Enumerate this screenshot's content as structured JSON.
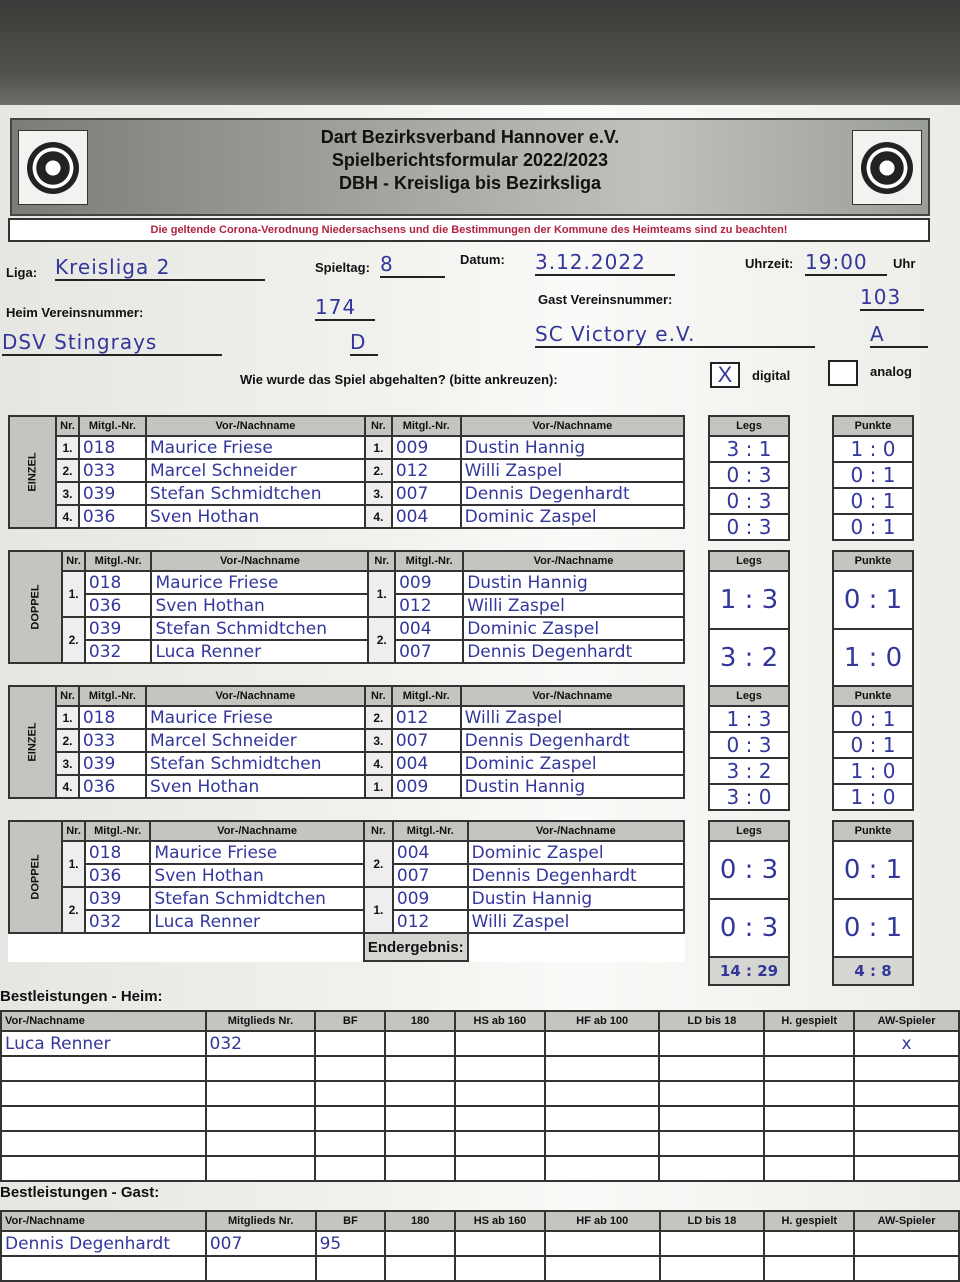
{
  "header": {
    "line1": "Dart Bezirksverband Hannover e.V.",
    "line2": "Spielberichtsformular 2022/2023",
    "line3": "DBH - Kreisliga bis Bezirksliga",
    "notice": "Die geltende Corona-Verodnung Niedersachsens und die Bestimmungen der Kommune des Heimteams sind zu beachten!"
  },
  "info": {
    "liga_label": "Liga:",
    "liga": "Kreisliga 2",
    "spieltag_label": "Spieltag:",
    "spieltag": "8",
    "datum_label": "Datum:",
    "datum": "3.12.2022",
    "uhrzeit_label": "Uhrzeit:",
    "uhrzeit": "19:00",
    "uhr": "Uhr",
    "heim_label": "Heim Vereinsnummer:",
    "heim_nr": "174",
    "heim_team": "DSV Stingrays",
    "heim_class": "D",
    "gast_label": "Gast Vereinsnummer:",
    "gast_nr": "103",
    "gast_team": "SC Victory e.V.",
    "gast_class": "A",
    "question": "Wie wurde das Spiel abgehalten? (bitte ankreuzen):",
    "digital": "digital",
    "digital_mark": "X",
    "analog": "analog",
    "digital_checked": true
  },
  "headers": {
    "nr": "Nr.",
    "mitgl": "Mitgl.-Nr.",
    "name": "Vor-/Nachname",
    "legs": "Legs",
    "punkte": "Punkte",
    "endergebnis": "Endergebnis:"
  },
  "sections": [
    {
      "label": "EINZEL",
      "type": "single",
      "rows": [
        {
          "nr": "1.",
          "hid": "018",
          "hname": "Maurice Friese",
          "anr": "1.",
          "aid": "009",
          "aname": "Dustin Hannig",
          "legs": "3 : 1",
          "punkte": "1 : 0"
        },
        {
          "nr": "2.",
          "hid": "033",
          "hname": "Marcel Schneider",
          "anr": "2.",
          "aid": "012",
          "aname": "Willi Zaspel",
          "legs": "0 : 3",
          "punkte": "0 : 1"
        },
        {
          "nr": "3.",
          "hid": "039",
          "hname": "Stefan Schmidtchen",
          "anr": "3.",
          "aid": "007",
          "aname": "Dennis Degenhardt",
          "legs": "0 : 3",
          "punkte": "0 : 1"
        },
        {
          "nr": "4.",
          "hid": "036",
          "hname": "Sven Hothan",
          "anr": "4.",
          "aid": "004",
          "aname": "Dominic Zaspel",
          "legs": "0 : 3",
          "punkte": "0 : 1"
        }
      ]
    },
    {
      "label": "DOPPEL",
      "type": "double",
      "rows": [
        {
          "nr": "1.",
          "home": [
            [
              "018",
              "Maurice Friese"
            ],
            [
              "036",
              "Sven Hothan"
            ]
          ],
          "anr": "1.",
          "away": [
            [
              "009",
              "Dustin Hannig"
            ],
            [
              "012",
              "Willi Zaspel"
            ]
          ],
          "legs": "1 : 3",
          "punkte": "0 : 1"
        },
        {
          "nr": "2.",
          "home": [
            [
              "039",
              "Stefan Schmidtchen"
            ],
            [
              "032",
              "Luca Renner"
            ]
          ],
          "anr": "2.",
          "away": [
            [
              "004",
              "Dominic Zaspel"
            ],
            [
              "007",
              "Dennis Degenhardt"
            ]
          ],
          "legs": "3 : 2",
          "punkte": "1 : 0"
        }
      ]
    },
    {
      "label": "EINZEL",
      "type": "single",
      "rows": [
        {
          "nr": "1.",
          "hid": "018",
          "hname": "Maurice Friese",
          "anr": "2.",
          "aid": "012",
          "aname": "Willi Zaspel",
          "legs": "1 : 3",
          "punkte": "0 : 1"
        },
        {
          "nr": "2.",
          "hid": "033",
          "hname": "Marcel Schneider",
          "anr": "3.",
          "aid": "007",
          "aname": "Dennis Degenhardt",
          "legs": "0 : 3",
          "punkte": "0 : 1"
        },
        {
          "nr": "3.",
          "hid": "039",
          "hname": "Stefan Schmidtchen",
          "anr": "4.",
          "aid": "004",
          "aname": "Dominic Zaspel",
          "legs": "3 : 2",
          "punkte": "1 : 0"
        },
        {
          "nr": "4.",
          "hid": "036",
          "hname": "Sven Hothan",
          "anr": "1.",
          "aid": "009",
          "aname": "Dustin Hannig",
          "legs": "3 : 0",
          "punkte": "1 : 0"
        }
      ]
    },
    {
      "label": "DOPPEL",
      "type": "double",
      "rows": [
        {
          "nr": "1.",
          "home": [
            [
              "018",
              "Maurice Friese"
            ],
            [
              "036",
              "Sven Hothan"
            ]
          ],
          "anr": "2.",
          "away": [
            [
              "004",
              "Dominic Zaspel"
            ],
            [
              "007",
              "Dennis Degenhardt"
            ]
          ],
          "legs": "0 : 3",
          "punkte": "0 : 1"
        },
        {
          "nr": "2.",
          "home": [
            [
              "039",
              "Stefan Schmidtchen"
            ],
            [
              "032",
              "Luca Renner"
            ]
          ],
          "anr": "1.",
          "away": [
            [
              "009",
              "Dustin Hannig"
            ],
            [
              "012",
              "Willi Zaspel"
            ]
          ],
          "legs": "0 : 3",
          "punkte": "0 : 1"
        }
      ]
    }
  ],
  "endergebnis": {
    "legs": "14 : 29",
    "punkte": "4 : 8"
  },
  "best": {
    "columns": [
      "Vor-/Nachname",
      "Mitglieds Nr.",
      "BF",
      "180",
      "HS ab 160",
      "HF ab 100",
      "LD bis 18",
      "H. gespielt",
      "AW-Spieler"
    ],
    "heim_title": "Bestleistungen - Heim:",
    "heim_rows": [
      [
        "Luca Renner",
        "032",
        "",
        "",
        "",
        "",
        "",
        "",
        "x"
      ],
      [
        "",
        "",
        "",
        "",
        "",
        "",
        "",
        "",
        ""
      ],
      [
        "",
        "",
        "",
        "",
        "",
        "",
        "",
        "",
        ""
      ],
      [
        "",
        "",
        "",
        "",
        "",
        "",
        "",
        "",
        ""
      ],
      [
        "",
        "",
        "",
        "",
        "",
        "",
        "",
        "",
        ""
      ],
      [
        "",
        "",
        "",
        "",
        "",
        "",
        "",
        "",
        ""
      ]
    ],
    "gast_title": "Bestleistungen - Gast:",
    "gast_rows": [
      [
        "Dennis Degenhardt",
        "007",
        "95",
        "",
        "",
        "",
        "",
        "",
        ""
      ],
      [
        "",
        "",
        "",
        "",
        "",
        "",
        "",
        "",
        ""
      ]
    ]
  }
}
